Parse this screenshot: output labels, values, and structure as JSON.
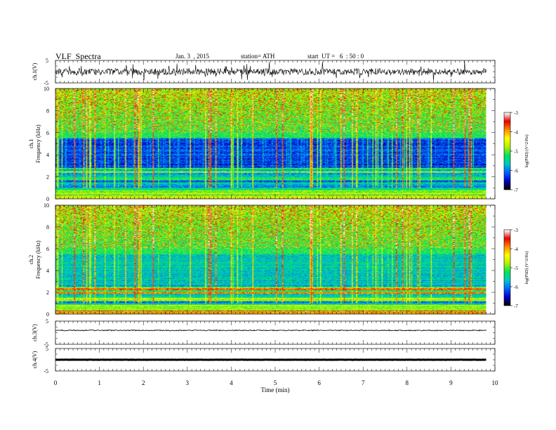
{
  "header": {
    "title": "VLF  Spectra",
    "date": "Jan. 3  , 2015",
    "station": "station= ATH",
    "start": "start  UT =   6  : 50 : 0"
  },
  "chart_data": {
    "type": "heatmap",
    "xlabel": "Time  (min)",
    "xlim": [
      0,
      10
    ],
    "xticks": [
      "0",
      "1",
      "2",
      "3",
      "4",
      "5",
      "6",
      "7",
      "8",
      "9",
      "10"
    ],
    "data_end_min": 9.8,
    "waveform_panels": [
      {
        "ylabel": "ch.1(V)",
        "ylim": [
          -5,
          5
        ],
        "ytick_labels": [
          "5",
          "-5"
        ],
        "baseline_v": 0.0,
        "noise_amplitude_v": 1.5,
        "spike_amplitude_v": 4
      },
      {
        "ylabel": "ch.3(V)",
        "ylim": [
          -5,
          5
        ],
        "ytick_labels": [
          "5",
          "-5"
        ],
        "baseline_v": 1.0,
        "noise_amplitude_v": 0.2,
        "spike_amplitude_v": 0
      },
      {
        "ylabel": "ch.4(V)",
        "ylim": [
          -5,
          5
        ],
        "ytick_labels": [
          "5",
          "-5"
        ],
        "baseline_v": 0.0,
        "noise_amplitude_v": 0.05,
        "spike_amplitude_v": 0
      }
    ],
    "spectrogram_panels": [
      {
        "ylabel_channel": "ch.1",
        "ylabel": "Frequency  (kHz)",
        "ylim": [
          0,
          10
        ],
        "yticks": [
          "0",
          "2",
          "4",
          "6",
          "8",
          "10"
        ],
        "colorbar_label": "log(PSD) (V^2/Hz)",
        "colorbar_ticks": [
          "-3",
          "-4",
          "-5",
          "-6",
          "-7"
        ],
        "clim": [
          -7,
          -3
        ]
      },
      {
        "ylabel_channel": "ch.2",
        "ylabel": "Frequency  (kHz)",
        "ylim": [
          0,
          10
        ],
        "yticks": [
          "0",
          "2",
          "4",
          "6",
          "8",
          "10"
        ],
        "colorbar_label": "log(PSD) (V^2/Hz)",
        "colorbar_ticks": [
          "-3",
          "-4",
          "-5",
          "-6",
          "-7"
        ],
        "clim": [
          -7,
          -3
        ]
      }
    ]
  },
  "colors": {
    "colormap": [
      "#000000",
      "#0000c8",
      "#0064ff",
      "#00c8c8",
      "#00e650",
      "#b4f000",
      "#ffff00",
      "#ff8c00",
      "#e60000",
      "#ffffff"
    ]
  }
}
